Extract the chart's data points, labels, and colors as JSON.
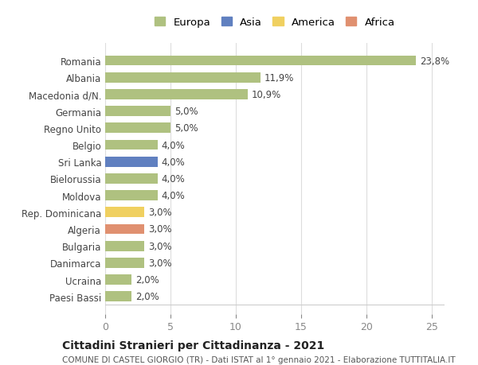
{
  "categories": [
    "Paesi Bassi",
    "Ucraina",
    "Danimarca",
    "Bulgaria",
    "Algeria",
    "Rep. Dominicana",
    "Moldova",
    "Bielorussia",
    "Sri Lanka",
    "Belgio",
    "Regno Unito",
    "Germania",
    "Macedonia d/N.",
    "Albania",
    "Romania"
  ],
  "values": [
    2.0,
    2.0,
    3.0,
    3.0,
    3.0,
    3.0,
    4.0,
    4.0,
    4.0,
    4.0,
    5.0,
    5.0,
    10.9,
    11.9,
    23.8
  ],
  "colors": [
    "#afc180",
    "#afc180",
    "#afc180",
    "#afc180",
    "#e09070",
    "#f0d060",
    "#afc180",
    "#afc180",
    "#6080c0",
    "#afc180",
    "#afc180",
    "#afc180",
    "#afc180",
    "#afc180",
    "#afc180"
  ],
  "labels": [
    "2,0%",
    "2,0%",
    "3,0%",
    "3,0%",
    "3,0%",
    "3,0%",
    "4,0%",
    "4,0%",
    "4,0%",
    "4,0%",
    "5,0%",
    "5,0%",
    "10,9%",
    "11,9%",
    "23,8%"
  ],
  "legend": [
    {
      "label": "Europa",
      "color": "#afc180"
    },
    {
      "label": "Asia",
      "color": "#6080c0"
    },
    {
      "label": "America",
      "color": "#f0d060"
    },
    {
      "label": "Africa",
      "color": "#e09070"
    }
  ],
  "xlim": [
    0,
    26
  ],
  "xticks": [
    0,
    5,
    10,
    15,
    20,
    25
  ],
  "title": "Cittadini Stranieri per Cittadinanza - 2021",
  "subtitle": "COMUNE DI CASTEL GIORGIO (TR) - Dati ISTAT al 1° gennaio 2021 - Elaborazione TUTTITALIA.IT",
  "bg_color": "#ffffff",
  "grid_color": "#dddddd",
  "bar_height": 0.6
}
